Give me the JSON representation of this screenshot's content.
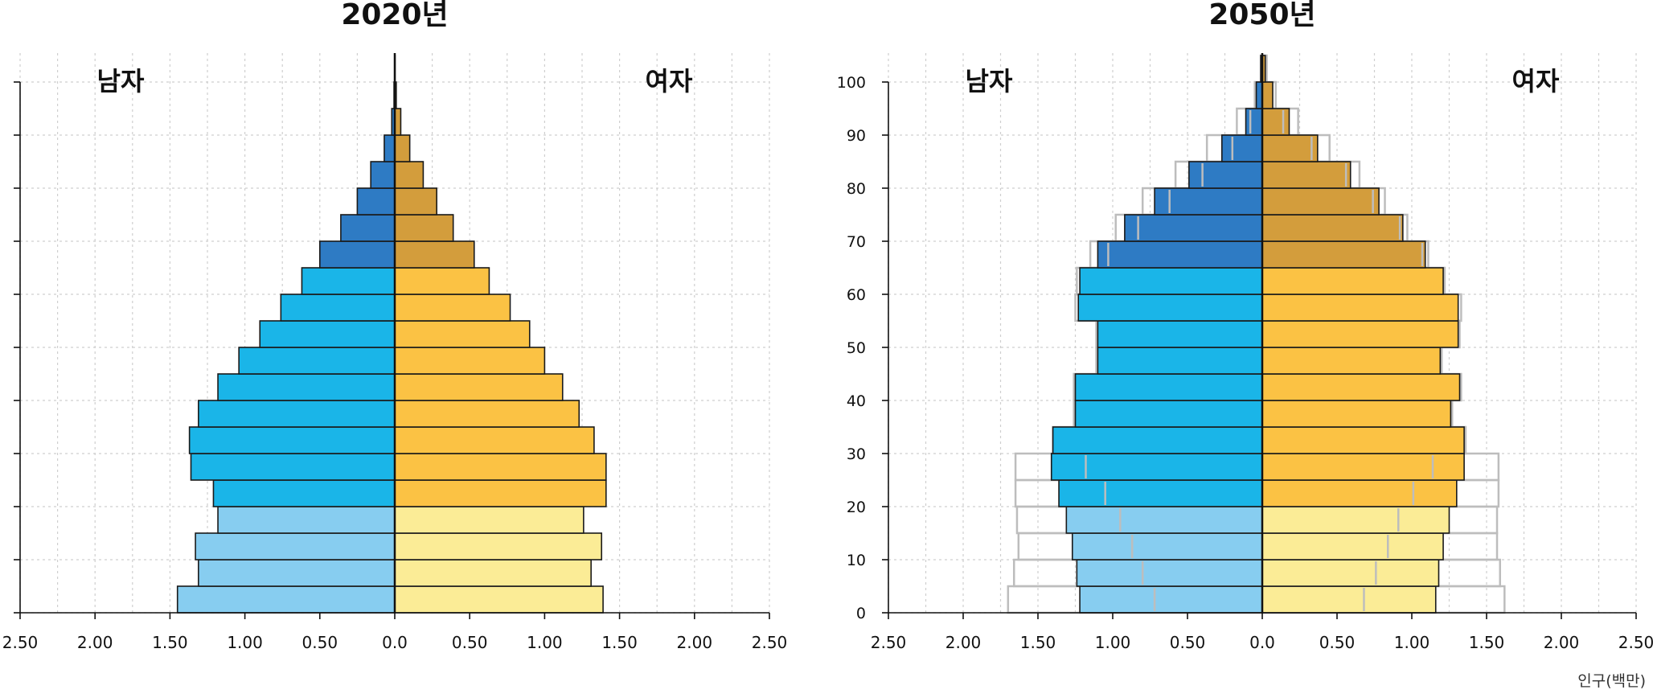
{
  "chart_data": [
    {
      "type": "bar",
      "subtype": "population-pyramid",
      "title": "2020년",
      "male_label": "남자",
      "female_label": "여자",
      "age_ticks": [
        "0",
        "10",
        "20",
        "30",
        "40",
        "50",
        "60",
        "70",
        "80",
        "90",
        "100"
      ],
      "show_age_tick_labels": false,
      "x_tick_labels": [
        "2.50",
        "2.00",
        "1.50",
        "1.00",
        "0.50",
        "0.0",
        "0.50",
        "1.00",
        "1.50",
        "2.00",
        "2.50"
      ],
      "xlim": [
        -2.5,
        2.5
      ],
      "unit_label": "",
      "grid": true,
      "age_groups": [
        "0-4",
        "5-9",
        "10-14",
        "15-19",
        "20-24",
        "25-29",
        "30-34",
        "35-39",
        "40-44",
        "45-49",
        "50-54",
        "55-59",
        "60-64",
        "65-69",
        "70-74",
        "75-79",
        "80-84",
        "85-89",
        "90-94",
        "95-99",
        "100+"
      ],
      "male": [
        1.45,
        1.31,
        1.33,
        1.18,
        1.21,
        1.36,
        1.37,
        1.31,
        1.18,
        1.04,
        0.9,
        0.76,
        0.62,
        0.5,
        0.36,
        0.25,
        0.16,
        0.07,
        0.02,
        0.005,
        0.001
      ],
      "female": [
        1.39,
        1.31,
        1.38,
        1.26,
        1.41,
        1.41,
        1.33,
        1.23,
        1.12,
        1.0,
        0.9,
        0.77,
        0.63,
        0.53,
        0.39,
        0.28,
        0.19,
        0.1,
        0.04,
        0.01,
        0.002
      ],
      "comparison_male": null,
      "comparison_female": null
    },
    {
      "type": "bar",
      "subtype": "population-pyramid",
      "title": "2050년",
      "male_label": "남자",
      "female_label": "여자",
      "age_ticks": [
        "0",
        "10",
        "20",
        "30",
        "40",
        "50",
        "60",
        "70",
        "80",
        "90",
        "100"
      ],
      "show_age_tick_labels": true,
      "x_tick_labels": [
        "2.50",
        "2.00",
        "1.50",
        "1.00",
        "0.50",
        "0.0",
        "0.50",
        "1.00",
        "1.50",
        "2.00",
        "2.50"
      ],
      "xlim": [
        -2.5,
        2.5
      ],
      "unit_label": "인구(백만)",
      "grid": true,
      "age_groups": [
        "0-4",
        "5-9",
        "10-14",
        "15-19",
        "20-24",
        "25-29",
        "30-34",
        "35-39",
        "40-44",
        "45-49",
        "50-54",
        "55-59",
        "60-64",
        "65-69",
        "70-74",
        "75-79",
        "80-84",
        "85-89",
        "90-94",
        "95-99",
        "100+"
      ],
      "male": [
        1.22,
        1.24,
        1.27,
        1.31,
        1.36,
        1.41,
        1.4,
        1.25,
        1.25,
        1.1,
        1.1,
        1.23,
        1.22,
        1.1,
        0.92,
        0.72,
        0.49,
        0.27,
        0.11,
        0.04,
        0.01
      ],
      "female": [
        1.16,
        1.18,
        1.21,
        1.25,
        1.3,
        1.35,
        1.35,
        1.26,
        1.32,
        1.19,
        1.31,
        1.31,
        1.21,
        1.09,
        0.94,
        0.78,
        0.59,
        0.37,
        0.18,
        0.07,
        0.02
      ],
      "comparison_male": [
        1.7,
        1.66,
        1.63,
        1.64,
        1.65,
        1.65,
        1.4,
        1.26,
        1.26,
        1.11,
        1.11,
        1.25,
        1.24,
        1.15,
        0.98,
        0.8,
        0.58,
        0.37,
        0.17,
        0.05,
        0.01
      ],
      "comparison_female": [
        1.62,
        1.59,
        1.57,
        1.57,
        1.58,
        1.58,
        1.36,
        1.27,
        1.33,
        1.2,
        1.32,
        1.33,
        1.22,
        1.11,
        0.97,
        0.82,
        0.65,
        0.45,
        0.24,
        0.09,
        0.03
      ],
      "comparison_marker_male": [
        0.72,
        0.8,
        0.87,
        0.95,
        1.05,
        1.18,
        null,
        null,
        null,
        null,
        null,
        null,
        null,
        1.03,
        0.83,
        0.62,
        0.4,
        0.2,
        0.08,
        null,
        null
      ],
      "comparison_marker_female": [
        0.68,
        0.76,
        0.84,
        0.91,
        1.01,
        1.14,
        null,
        null,
        null,
        null,
        null,
        null,
        null,
        1.07,
        0.92,
        0.74,
        0.56,
        0.33,
        0.14,
        null,
        null
      ]
    }
  ],
  "colors": {
    "male_young": "#87cdf0",
    "male_working": "#1ab5e8",
    "male_old": "#2e7bc4",
    "female_young": "#fbec96",
    "female_working": "#fbc244",
    "female_old": "#d39d3c",
    "bar_outline": "#1a1a1a",
    "comparison_outline": "#bdbdbd",
    "grid": "#cfcfcf"
  }
}
